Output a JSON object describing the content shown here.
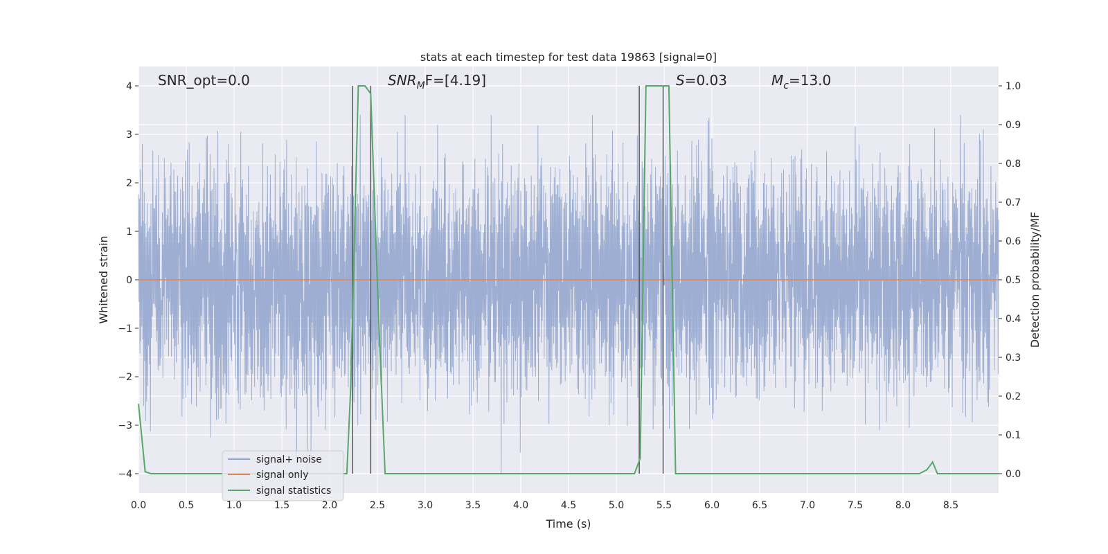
{
  "chart_data": {
    "type": "line",
    "title": "stats at each timestep for test data 19863 [signal=0]",
    "xlabel": "Time (s)",
    "ylabel_left": "Whitened strain",
    "ylabel_right": "Detection probability/MF",
    "xlim": [
      0.0,
      9.0
    ],
    "ylim_left": [
      -4.4,
      4.4
    ],
    "ylim_right": [
      -0.05,
      1.05
    ],
    "x_ticks": [
      "0.0",
      "0.5",
      "1.0",
      "1.5",
      "2.0",
      "2.5",
      "3.0",
      "3.5",
      "4.0",
      "4.5",
      "5.0",
      "5.5",
      "6.0",
      "6.5",
      "7.0",
      "7.5",
      "8.0",
      "8.5"
    ],
    "y_ticks_left": [
      "4",
      "3",
      "2",
      "1",
      "0",
      "−1",
      "−2",
      "−3",
      "−4"
    ],
    "y_ticks_right": [
      "1.0",
      "0.9",
      "0.8",
      "0.7",
      "0.6",
      "0.5",
      "0.4",
      "0.3",
      "0.2",
      "0.1",
      "0.0"
    ],
    "annotations": {
      "snr_opt": "SNR_opt=0.0",
      "snr_mf_main": "SNR",
      "snr_mf_sub": "M",
      "snr_mf_rest": "F=[4.19]",
      "s_var": "S",
      "s_value": "=0.03",
      "mc_var": "M",
      "mc_sub": "c",
      "mc_value": "=13.0"
    },
    "grid": true,
    "legend_position": "lower-left",
    "series": [
      {
        "name": "signal+ noise",
        "color": "#8fa3cc",
        "style": "noise",
        "amplitude_envelope": [
          -4.0,
          3.4
        ]
      },
      {
        "name": "signal only",
        "color": "#dd8452",
        "x": [
          0.0,
          9.0
        ],
        "y": [
          0.0,
          0.0
        ]
      },
      {
        "name": "signal statistics",
        "color": "#55a868",
        "x": [
          0.0,
          0.07,
          0.13,
          2.18,
          2.22,
          2.3,
          2.37,
          2.43,
          2.51,
          2.58,
          3.46,
          5.19,
          5.25,
          5.31,
          5.38,
          5.55,
          5.62,
          8.17,
          8.25,
          8.31,
          8.36,
          8.45,
          9.0
        ],
        "y": [
          0.18,
          0.005,
          0.0,
          0.0,
          0.22,
          1.0,
          1.0,
          0.98,
          0.42,
          0.0,
          0.0,
          0.0,
          0.04,
          1.0,
          1.0,
          1.0,
          0.0,
          0.0,
          0.01,
          0.03,
          0.0,
          0.0,
          0.0
        ]
      }
    ],
    "vertical_lines": {
      "color": "#555555",
      "pairs": [
        {
          "x": [
            2.24,
            2.43
          ],
          "y_top": 1.0
        },
        {
          "x": [
            5.24,
            5.49
          ],
          "y_top": 1.0
        }
      ]
    }
  }
}
